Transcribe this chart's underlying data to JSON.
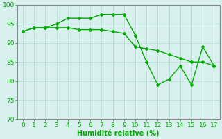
{
  "line1_x": [
    0,
    1,
    2,
    3,
    4,
    5,
    6,
    7,
    8,
    9,
    10,
    11,
    12,
    13,
    14,
    15,
    16,
    17
  ],
  "line1_y": [
    93,
    94,
    94,
    95,
    96.5,
    96.5,
    96.5,
    97.5,
    97.5,
    97.5,
    92,
    85,
    79,
    80.5,
    84,
    79,
    89,
    84
  ],
  "line2_x": [
    0,
    1,
    2,
    3,
    4,
    5,
    6,
    7,
    8,
    9,
    10,
    11,
    12,
    13,
    14,
    15,
    16,
    17
  ],
  "line2_y": [
    93,
    94,
    94,
    94,
    94,
    93.5,
    93.5,
    93.5,
    93,
    92.5,
    89,
    88.5,
    88,
    87,
    86,
    85,
    85,
    84
  ],
  "line_color": "#00aa00",
  "marker": "D",
  "markersize": 2.0,
  "linewidth": 1.0,
  "xlabel": "Humidité relative (%)",
  "xlabel_color": "#00aa00",
  "xlabel_fontsize": 7,
  "tick_color": "#00aa00",
  "xlim": [
    -0.5,
    17.5
  ],
  "ylim": [
    70,
    100
  ],
  "yticks": [
    70,
    75,
    80,
    85,
    90,
    95,
    100
  ],
  "xticks": [
    0,
    1,
    2,
    3,
    4,
    5,
    6,
    7,
    8,
    9,
    10,
    11,
    12,
    13,
    14,
    15,
    16,
    17
  ],
  "tick_fontsize": 6.5,
  "background_color": "#d8f0ee",
  "grid_color": "#b8d8d4",
  "grid_linewidth": 0.5,
  "spine_color": "#888888",
  "spine_linewidth": 0.8
}
